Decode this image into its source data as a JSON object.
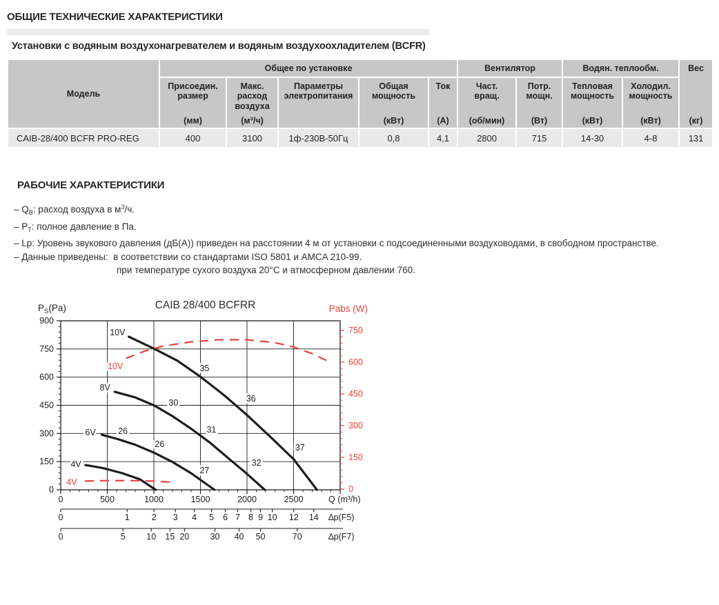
{
  "page": {
    "title": "ОБЩИЕ ТЕХНИЧЕСКИЕ ХАРАКТЕРИСТИКИ",
    "subtitle": "Установки с водяным воздухонагревателем и водяным воздухоохладителем (BCFR)"
  },
  "table": {
    "model_header": "Модель",
    "groups": [
      {
        "label": "Общее по установке",
        "span": 5
      },
      {
        "label": "Вентилятор",
        "span": 2
      },
      {
        "label": "Водян. теплообм.",
        "span": 2
      }
    ],
    "weight_header": {
      "label": "Вес",
      "unit": "(кг)"
    },
    "columns": [
      {
        "label": "Присоедин.\nразмер",
        "unit": "(мм)"
      },
      {
        "label": "Макс.\nрасход\nвоздуха",
        "unit": "(м³/ч)"
      },
      {
        "label": "Параметры\nэлектропитания",
        "unit": ""
      },
      {
        "label": "Общая\nмощность",
        "unit": "(кВт)"
      },
      {
        "label": "Ток",
        "unit": "(А)"
      },
      {
        "label": "Част.\nвращ.",
        "unit": "(об/мин)"
      },
      {
        "label": "Потр.\nмощн.",
        "unit": "(Вт)"
      },
      {
        "label": "Тепловая\nмощность",
        "unit": "(кВт)"
      },
      {
        "label": "Холодил.\nмощность",
        "unit": "(кВт)"
      }
    ],
    "row": [
      "CAIB-28/400 BCFR PRO-REG",
      "400",
      "3100",
      "1ф-230В-50Гц",
      "0,8",
      "4,1",
      "2800",
      "715",
      "14-30",
      "4-8",
      "131"
    ]
  },
  "working": {
    "heading": "РАБОЧИЕ ХАРАКТЕРИСТИКИ",
    "notes": [
      {
        "indent": false,
        "parts": [
          {
            "t": "– Q"
          },
          {
            "sub": "В"
          },
          {
            "t": ": расход воздуха в м"
          },
          {
            "sup": "3"
          },
          {
            "t": "/ч."
          }
        ]
      },
      {
        "indent": false,
        "parts": [
          {
            "t": "– P"
          },
          {
            "sub": "Т"
          },
          {
            "t": ": полное давление в Па."
          }
        ]
      },
      {
        "indent": false,
        "parts": [
          {
            "t": "– Lp: Уровень звукового давления (дБ(А)) приведен на расстоянии 4 м от установки с подсоединенными воздуховодами, в свободном пространстве."
          }
        ]
      },
      {
        "indent": false,
        "parts": [
          {
            "t": "– Данные приведены:  в соответствии со стандартами ISO 5801 и AMCA 210-99."
          }
        ]
      },
      {
        "indent": true,
        "parts": [
          {
            "t": "при температуре сухого воздуха 20°C и атмосферном давлении 760."
          }
        ]
      }
    ]
  },
  "chart_data": {
    "type": "line",
    "title": "CAIB 28/400 BCFRR",
    "x_axis": {
      "label": "Q (m³/h)",
      "max": 3000,
      "major_ticks": [
        0,
        500,
        1000,
        1500,
        2000,
        2500
      ],
      "minor_step": 100
    },
    "left_axis": {
      "label_pre": "P",
      "label_sub": "S",
      "label_post": "(Pa)",
      "max": 900,
      "major_ticks": [
        0,
        150,
        300,
        450,
        600,
        750,
        900
      ],
      "minor_step": 30
    },
    "right_axis": {
      "label": "Pabs (W)",
      "max": 750,
      "major_ticks": [
        0,
        150,
        300,
        450,
        600,
        750
      ],
      "minor_step": 30
    },
    "pressure_curves": [
      {
        "name": "10V",
        "points": [
          [
            730,
            815
          ],
          [
            1000,
            752
          ],
          [
            1250,
            688
          ],
          [
            1500,
            602
          ],
          [
            1750,
            505
          ],
          [
            2000,
            398
          ],
          [
            2250,
            282
          ],
          [
            2500,
            163
          ],
          [
            2750,
            0
          ]
        ]
      },
      {
        "name": "8V",
        "points": [
          [
            580,
            522
          ],
          [
            800,
            492
          ],
          [
            1000,
            450
          ],
          [
            1200,
            392
          ],
          [
            1400,
            325
          ],
          [
            1600,
            252
          ],
          [
            1800,
            168
          ],
          [
            2000,
            85
          ],
          [
            2190,
            0
          ]
        ]
      },
      {
        "name": "6V",
        "points": [
          [
            440,
            293
          ],
          [
            600,
            272
          ],
          [
            800,
            240
          ],
          [
            1000,
            198
          ],
          [
            1200,
            148
          ],
          [
            1400,
            88
          ],
          [
            1650,
            0
          ]
        ]
      },
      {
        "name": "4V",
        "points": [
          [
            265,
            132
          ],
          [
            450,
            116
          ],
          [
            650,
            90
          ],
          [
            850,
            56
          ],
          [
            1020,
            0
          ]
        ]
      }
    ],
    "power_curves": [
      {
        "name": "10V",
        "points": [
          [
            700,
            618
          ],
          [
            900,
            652
          ],
          [
            1100,
            676
          ],
          [
            1400,
            696
          ],
          [
            1700,
            706
          ],
          [
            2000,
            706
          ],
          [
            2300,
            692
          ],
          [
            2500,
            672
          ],
          [
            2700,
            640
          ],
          [
            2850,
            608
          ]
        ]
      },
      {
        "name": "4V",
        "points": [
          [
            260,
            38
          ],
          [
            500,
            40
          ],
          [
            750,
            40
          ],
          [
            1000,
            38
          ],
          [
            1170,
            33
          ]
        ]
      }
    ],
    "speed_labels": [
      {
        "text": "10V",
        "q": 610,
        "v": 838,
        "axis": "pa"
      },
      {
        "text": "8V",
        "q": 475,
        "v": 544,
        "axis": "pa"
      },
      {
        "text": "6V",
        "q": 319,
        "v": 305,
        "axis": "pa"
      },
      {
        "text": "4V",
        "q": 163,
        "v": 136,
        "axis": "pa"
      },
      {
        "text": "10V",
        "q": 587,
        "v": 580,
        "axis": "w"
      },
      {
        "text": "4V",
        "q": 119,
        "v": 33,
        "axis": "w"
      }
    ],
    "noise_labels": [
      {
        "text": "26",
        "q": 668,
        "pa": 312
      },
      {
        "text": "26",
        "q": 1062,
        "pa": 243
      },
      {
        "text": "27",
        "q": 1544,
        "pa": 103
      },
      {
        "text": "30",
        "q": 1210,
        "pa": 463
      },
      {
        "text": "31",
        "q": 1618,
        "pa": 320
      },
      {
        "text": "32",
        "q": 2101,
        "pa": 143
      },
      {
        "text": "35",
        "q": 1544,
        "pa": 647
      },
      {
        "text": "36",
        "q": 2042,
        "pa": 485
      },
      {
        "text": "37",
        "q": 2569,
        "pa": 224
      }
    ],
    "sub_axes": [
      {
        "label": "∆p(F5)",
        "ticks": [
          [
            "0",
            0
          ],
          [
            "1",
            713
          ],
          [
            "2",
            1002
          ],
          [
            "3",
            1232
          ],
          [
            "4",
            1433
          ],
          [
            "5",
            1618
          ],
          [
            "6",
            1767
          ],
          [
            "7",
            1900
          ],
          [
            "8",
            2041
          ],
          [
            "9",
            2145
          ],
          [
            "10",
            2271
          ],
          [
            "12",
            2502
          ],
          [
            "14",
            2717
          ]
        ]
      },
      {
        "label": "∆p(F7)",
        "ticks": [
          [
            "0",
            0
          ],
          [
            "5",
            668
          ],
          [
            "10",
            972
          ],
          [
            "15",
            1173
          ],
          [
            "20",
            1329
          ],
          [
            "30",
            1656
          ],
          [
            "40",
            1915
          ],
          [
            "50",
            2145
          ],
          [
            "70",
            2539
          ]
        ]
      }
    ],
    "colors": {
      "pressure": "#1d1d1b",
      "power": "#e8403a",
      "grid": "#1d1d1b"
    }
  }
}
